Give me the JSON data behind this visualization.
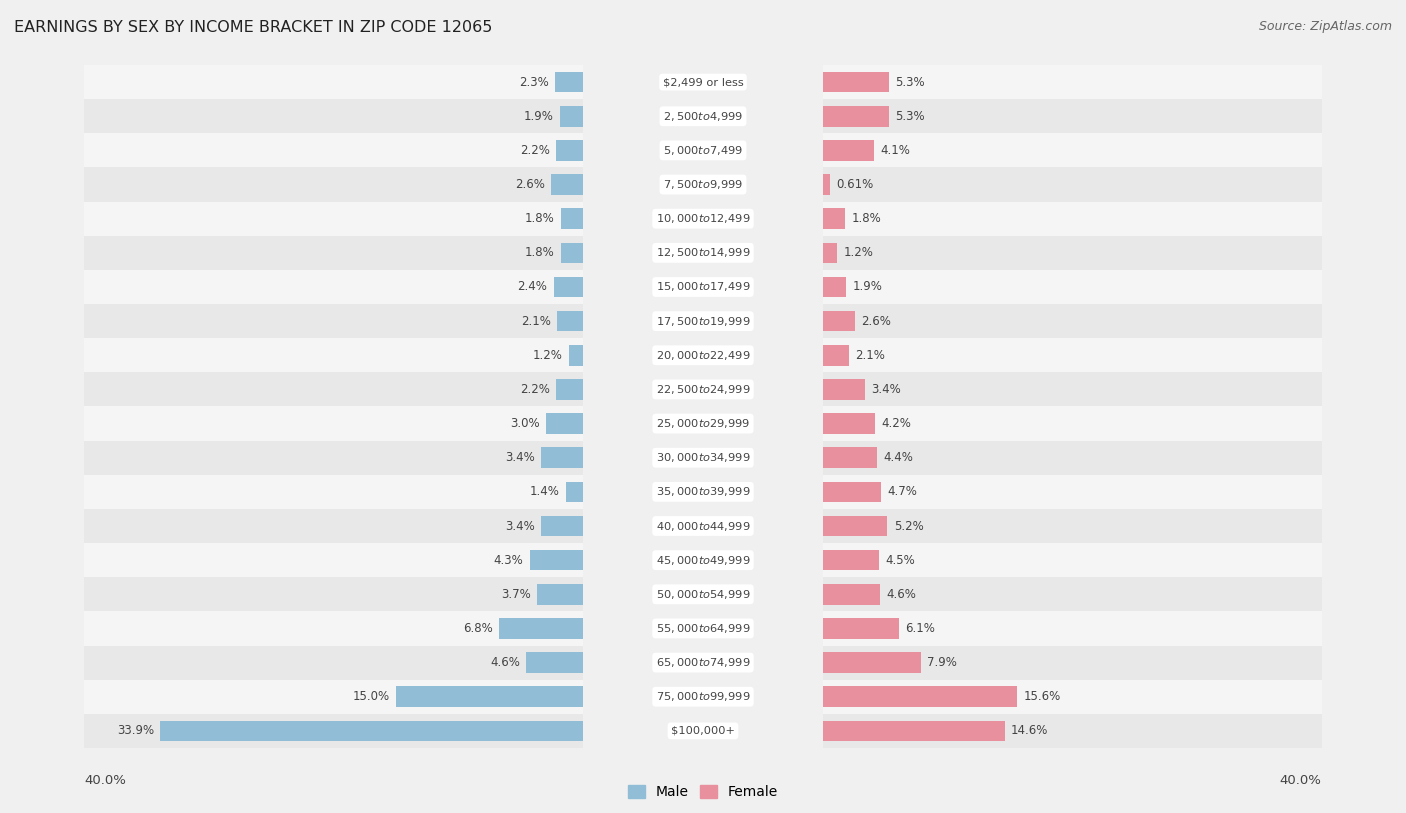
{
  "title": "EARNINGS BY SEX BY INCOME BRACKET IN ZIP CODE 12065",
  "source": "Source: ZipAtlas.com",
  "categories": [
    "$2,499 or less",
    "$2,500 to $4,999",
    "$5,000 to $7,499",
    "$7,500 to $9,999",
    "$10,000 to $12,499",
    "$12,500 to $14,999",
    "$15,000 to $17,499",
    "$17,500 to $19,999",
    "$20,000 to $22,499",
    "$22,500 to $24,999",
    "$25,000 to $29,999",
    "$30,000 to $34,999",
    "$35,000 to $39,999",
    "$40,000 to $44,999",
    "$45,000 to $49,999",
    "$50,000 to $54,999",
    "$55,000 to $64,999",
    "$65,000 to $74,999",
    "$75,000 to $99,999",
    "$100,000+"
  ],
  "male_values": [
    2.3,
    1.9,
    2.2,
    2.6,
    1.8,
    1.8,
    2.4,
    2.1,
    1.2,
    2.2,
    3.0,
    3.4,
    1.4,
    3.4,
    4.3,
    3.7,
    6.8,
    4.6,
    15.0,
    33.9
  ],
  "female_values": [
    5.3,
    5.3,
    4.1,
    0.61,
    1.8,
    1.2,
    1.9,
    2.6,
    2.1,
    3.4,
    4.2,
    4.4,
    4.7,
    5.2,
    4.5,
    4.6,
    6.1,
    7.9,
    15.6,
    14.6
  ],
  "male_color": "#92bdd6",
  "female_color": "#e8909e",
  "row_color_odd": "#ebebeb",
  "row_color_even": "#f5f5f5",
  "background_color": "#f0f0f0",
  "label_box_color": "#ffffff",
  "text_color": "#444444",
  "xlim": 40.0,
  "legend_male": "Male",
  "legend_female": "Female"
}
